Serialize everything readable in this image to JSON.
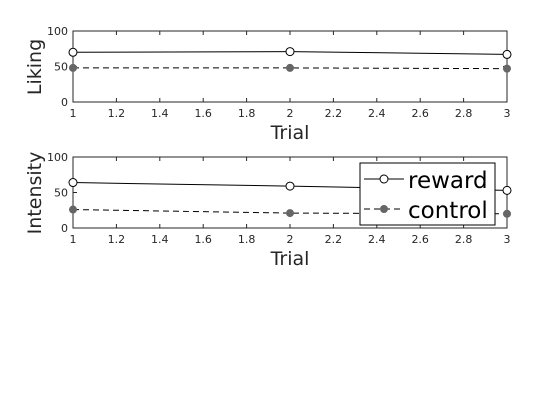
{
  "chart_data": [
    {
      "type": "line",
      "xlabel": "Trial",
      "ylabel": "Liking",
      "x": [
        1,
        2,
        3
      ],
      "xlim": [
        1,
        3
      ],
      "ylim": [
        0,
        100
      ],
      "xticks": [
        "1",
        "1.2",
        "1.4",
        "1.6",
        "1.8",
        "2",
        "2.2",
        "2.4",
        "2.6",
        "2.8",
        "3"
      ],
      "yticks": [
        "0",
        "50",
        "100"
      ],
      "grid": false,
      "series": [
        {
          "name": "reward",
          "values": [
            70,
            71,
            67
          ],
          "color": "#000000",
          "marker": "open-circle",
          "linestyle": "solid"
        },
        {
          "name": "control",
          "values": [
            48,
            48,
            47
          ],
          "color": "#000000",
          "marker_color": "#666666",
          "marker": "filled-circle",
          "linestyle": "dashed"
        }
      ]
    },
    {
      "type": "line",
      "xlabel": "Trial",
      "ylabel": "Intensity",
      "x": [
        1,
        2,
        3
      ],
      "xlim": [
        1,
        3
      ],
      "ylim": [
        0,
        100
      ],
      "xticks": [
        "1",
        "1.2",
        "1.4",
        "1.6",
        "1.8",
        "2",
        "2.2",
        "2.4",
        "2.6",
        "2.8",
        "3"
      ],
      "yticks": [
        "0",
        "50",
        "100"
      ],
      "grid": false,
      "legend": {
        "placement": "top-right",
        "entries": [
          "reward",
          "control"
        ]
      },
      "series": [
        {
          "name": "reward",
          "values": [
            64,
            59,
            53
          ],
          "color": "#000000",
          "marker": "open-circle",
          "linestyle": "solid"
        },
        {
          "name": "control",
          "values": [
            26,
            21,
            20
          ],
          "color": "#000000",
          "marker_color": "#666666",
          "marker": "filled-circle",
          "linestyle": "dashed"
        }
      ]
    }
  ]
}
